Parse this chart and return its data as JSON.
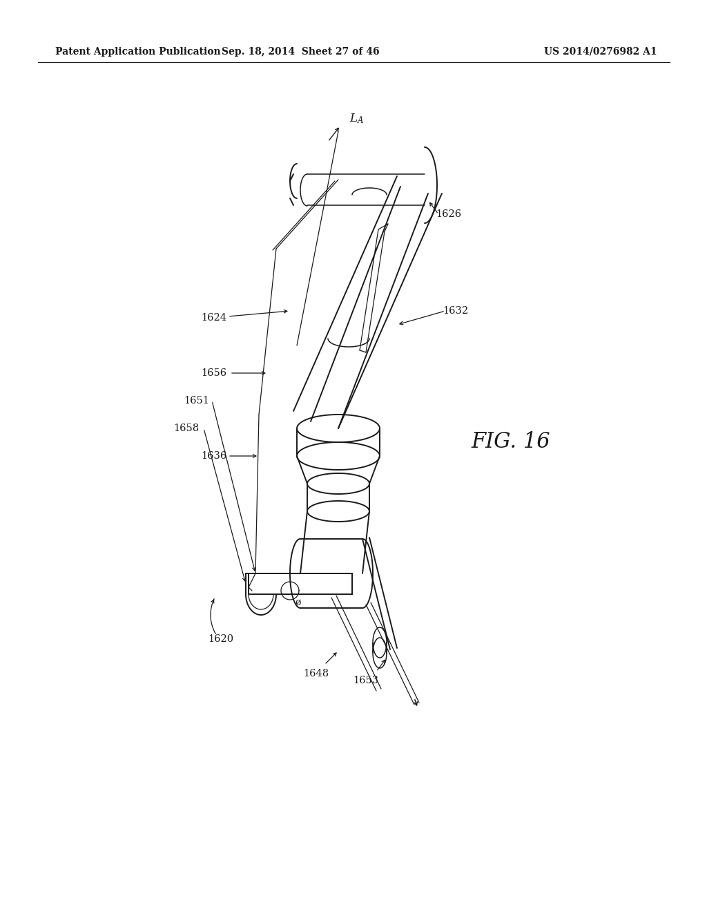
{
  "bg_color": "#ffffff",
  "header_left": "Patent Application Publication",
  "header_mid": "Sep. 18, 2014  Sheet 27 of 46",
  "header_right": "US 2014/0276982 A1",
  "fig_label": "FIG. 16",
  "line_color": "#1a1a1a",
  "lw_main": 1.4,
  "lw_thin": 0.9,
  "lw_med": 1.1,
  "label_fontsize": 10.5,
  "header_fontsize": 10,
  "fig_fontsize": 22
}
